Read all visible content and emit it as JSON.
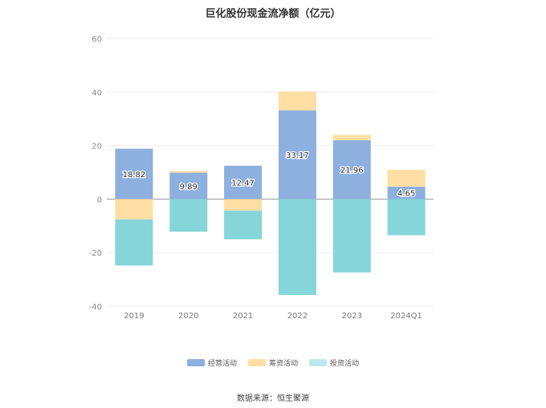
{
  "title": "巨化股份现金流净额（亿元）",
  "source": "数据来源：恒生聚源",
  "colors": {
    "operating": "#8eb0de",
    "financing": "#ffdea3",
    "investing": "#86d5d9",
    "investing_legend": "#bfe8ec"
  },
  "chart_data": {
    "type": "bar",
    "stacked": true,
    "title": "巨化股份现金流净额（亿元）",
    "categories": [
      "2019",
      "2020",
      "2021",
      "2022",
      "2023",
      "2024Q1"
    ],
    "ylim": [
      -40,
      60
    ],
    "yticks": [
      "60",
      "40",
      "20",
      "0",
      "-20",
      "-40"
    ],
    "grid": true,
    "legend_position": "bottom",
    "series": [
      {
        "name": "经营活动",
        "values": [
          18.82,
          9.89,
          12.47,
          33.17,
          21.96,
          4.65
        ],
        "labels": [
          "18.82",
          "9.89",
          "12.47",
          "33.17",
          "21.96",
          "4.65"
        ]
      },
      {
        "name": "筹资活动",
        "values": [
          -7.6,
          0.6,
          -4.3,
          7.0,
          2.0,
          6.3
        ]
      },
      {
        "name": "投资活动",
        "values": [
          -17.2,
          -12.2,
          -10.7,
          -35.8,
          -27.4,
          -13.5
        ]
      }
    ]
  }
}
